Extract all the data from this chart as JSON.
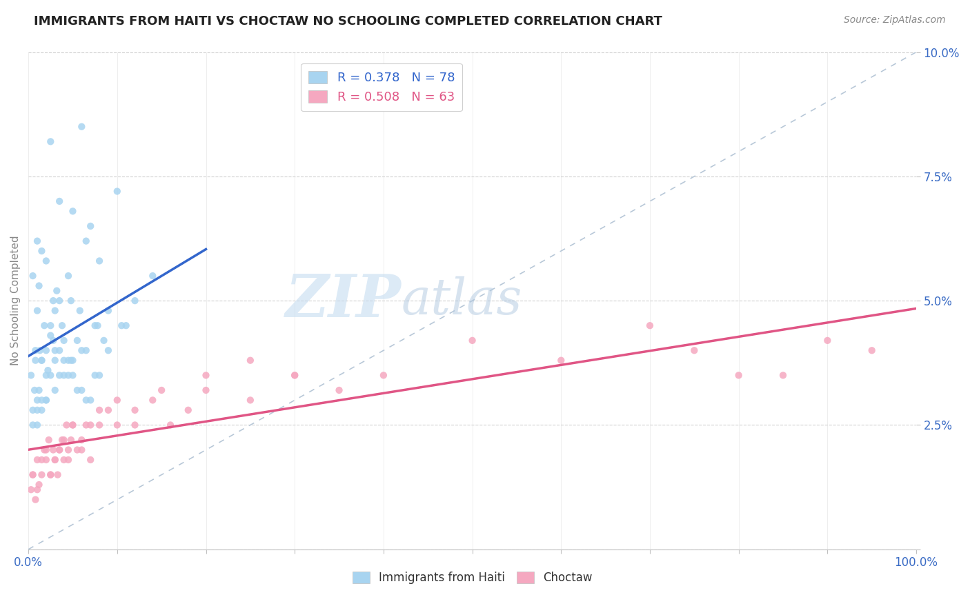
{
  "title": "IMMIGRANTS FROM HAITI VS CHOCTAW NO SCHOOLING COMPLETED CORRELATION CHART",
  "source_text": "Source: ZipAtlas.com",
  "ylabel": "No Schooling Completed",
  "watermark_zip": "ZIP",
  "watermark_atlas": "atlas",
  "series1_label": "Immigrants from Haiti",
  "series2_label": "Choctaw",
  "series1_R": 0.378,
  "series1_N": 78,
  "series2_R": 0.508,
  "series2_N": 63,
  "series1_color": "#A8D4F0",
  "series2_color": "#F5A8C0",
  "series1_line_color": "#3366CC",
  "series2_line_color": "#E05585",
  "ref_line_color": "#B8C8D8",
  "xlim": [
    0,
    100
  ],
  "ylim": [
    0,
    10
  ],
  "blue_x": [
    2.5,
    6.0,
    10.0,
    3.5,
    5.0,
    7.0,
    1.0,
    1.5,
    2.0,
    0.5,
    1.2,
    2.8,
    3.2,
    4.5,
    6.5,
    8.0,
    1.0,
    1.8,
    2.5,
    3.0,
    4.0,
    5.5,
    7.5,
    9.0,
    0.8,
    1.5,
    2.2,
    3.5,
    4.8,
    6.0,
    1.2,
    2.0,
    3.0,
    4.0,
    5.0,
    6.5,
    8.5,
    10.5,
    0.3,
    0.7,
    1.0,
    1.5,
    2.0,
    2.5,
    3.0,
    3.5,
    4.0,
    4.5,
    5.0,
    6.0,
    7.0,
    8.0,
    9.0,
    11.0,
    12.0,
    14.0,
    0.5,
    1.0,
    1.5,
    2.0,
    2.5,
    3.0,
    3.5,
    4.5,
    5.5,
    6.5,
    7.5,
    0.8,
    1.3,
    2.8,
    3.8,
    4.8,
    5.8,
    7.8,
    0.5,
    1.0,
    1.5,
    2.0
  ],
  "blue_y": [
    8.2,
    8.5,
    7.2,
    7.0,
    6.8,
    6.5,
    6.2,
    6.0,
    5.8,
    5.5,
    5.3,
    5.0,
    5.2,
    5.5,
    6.2,
    5.8,
    4.8,
    4.5,
    4.3,
    4.0,
    3.8,
    4.2,
    4.5,
    4.8,
    4.0,
    3.8,
    3.6,
    3.5,
    3.8,
    4.0,
    3.2,
    3.0,
    3.2,
    3.5,
    3.8,
    4.0,
    4.2,
    4.5,
    3.5,
    3.2,
    3.0,
    3.8,
    4.0,
    4.5,
    4.8,
    5.0,
    4.2,
    3.8,
    3.5,
    3.2,
    3.0,
    3.5,
    4.0,
    4.5,
    5.0,
    5.5,
    2.8,
    2.5,
    2.8,
    3.0,
    3.5,
    3.8,
    4.0,
    3.5,
    3.2,
    3.0,
    3.5,
    3.8,
    4.0,
    4.2,
    4.5,
    5.0,
    4.8,
    4.5,
    2.5,
    2.8,
    3.0,
    3.5
  ],
  "pink_x": [
    0.3,
    0.5,
    0.8,
    1.0,
    1.2,
    1.5,
    1.8,
    2.0,
    2.3,
    2.5,
    2.8,
    3.0,
    3.3,
    3.5,
    3.8,
    4.0,
    4.3,
    4.5,
    4.8,
    5.0,
    5.5,
    6.0,
    6.5,
    7.0,
    8.0,
    9.0,
    10.0,
    12.0,
    14.0,
    16.0,
    18.0,
    20.0,
    25.0,
    30.0,
    35.0,
    40.0,
    50.0,
    60.0,
    70.0,
    80.0,
    90.0,
    0.5,
    1.0,
    1.5,
    2.0,
    2.5,
    3.0,
    3.5,
    4.0,
    4.5,
    5.0,
    6.0,
    7.0,
    8.0,
    10.0,
    12.0,
    15.0,
    20.0,
    25.0,
    30.0,
    75.0,
    85.0,
    95.0
  ],
  "pink_y": [
    1.2,
    1.5,
    1.0,
    1.8,
    1.3,
    1.5,
    2.0,
    1.8,
    2.2,
    1.5,
    2.0,
    1.8,
    1.5,
    2.0,
    2.2,
    1.8,
    2.5,
    2.0,
    2.2,
    2.5,
    2.0,
    2.2,
    2.5,
    1.8,
    2.5,
    2.8,
    2.5,
    2.8,
    3.0,
    2.5,
    2.8,
    3.2,
    3.0,
    3.5,
    3.2,
    3.5,
    4.2,
    3.8,
    4.5,
    3.5,
    4.2,
    1.5,
    1.2,
    1.8,
    2.0,
    1.5,
    1.8,
    2.0,
    2.2,
    1.8,
    2.5,
    2.0,
    2.5,
    2.8,
    3.0,
    2.5,
    3.2,
    3.5,
    3.8,
    3.5,
    4.0,
    3.5,
    4.0
  ]
}
